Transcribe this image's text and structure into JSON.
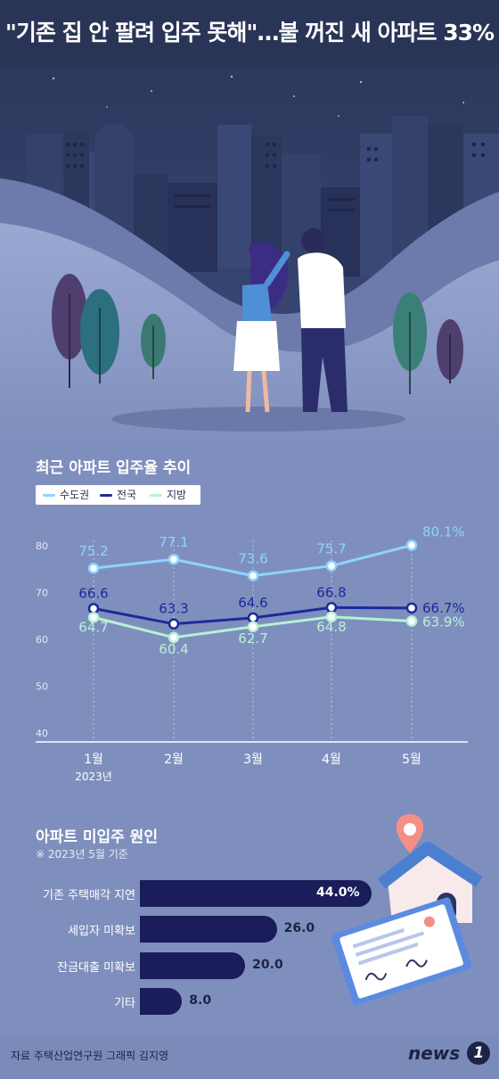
{
  "headline": "\"기존 집 안 팔려 입주 못해\"…불 꺼진 새 아파트 33%",
  "colors": {
    "capital": "#8fd3ff",
    "national": "#1b2a9c",
    "regional": "#b6f2d6",
    "bar": "#1a1d5a",
    "navy_sky": "#2a3457"
  },
  "chart_data": [
    {
      "type": "line",
      "title": "최근 아파트 입주율 추이",
      "categories": [
        "1월",
        "2월",
        "3월",
        "4월",
        "5월"
      ],
      "x_note": "2023년",
      "ylim": [
        40,
        80
      ],
      "y_ticks": [
        "40",
        "50",
        "60",
        "70",
        "80"
      ],
      "grid": "vertical dashed",
      "legend_position": "top-left",
      "series": [
        {
          "name": "수도권",
          "color": "#8fd3ff",
          "values": [
            75.2,
            77.1,
            73.6,
            75.7,
            80.1
          ],
          "labels": [
            "75.2",
            "77.1",
            "73.6",
            "75.7",
            "80.1%"
          ]
        },
        {
          "name": "전국",
          "color": "#1b2a9c",
          "values": [
            66.6,
            63.3,
            64.6,
            66.8,
            66.7
          ],
          "labels": [
            "66.6",
            "63.3",
            "64.6",
            "66.8",
            "66.7%"
          ]
        },
        {
          "name": "지방",
          "color": "#b6f2d6",
          "values": [
            64.7,
            60.4,
            62.7,
            64.8,
            63.9
          ],
          "labels": [
            "64.7",
            "60.4",
            "62.7",
            "64.8",
            "63.9%"
          ]
        }
      ]
    },
    {
      "type": "bar",
      "orientation": "horizontal",
      "title": "아파트 미입주 원인",
      "subtitle": "※ 2023년 5월 기준",
      "categories": [
        "기존 주택매각 지연",
        "세입자 미확보",
        "잔금대출 미확보",
        "기타"
      ],
      "values": [
        44.0,
        26.0,
        20.0,
        8.0
      ],
      "value_labels": [
        "44.0%",
        "26.0",
        "20.0",
        "8.0"
      ]
    }
  ],
  "footer": {
    "source": "자료 주택산업연구원  그래픽 김지영",
    "logo_text": "news",
    "logo_mark": "1"
  },
  "icons": [
    "city-skyline-icon",
    "couple-illustration-icon",
    "tree-icon",
    "location-pin-icon",
    "house-icon",
    "contract-document-icon"
  ]
}
